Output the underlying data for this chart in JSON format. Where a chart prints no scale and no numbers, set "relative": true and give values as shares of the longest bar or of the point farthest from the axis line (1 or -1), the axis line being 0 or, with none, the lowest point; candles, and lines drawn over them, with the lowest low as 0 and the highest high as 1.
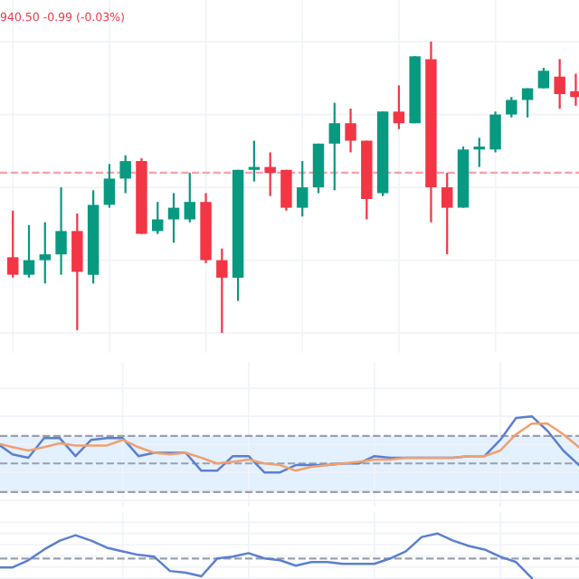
{
  "chart_data": [
    {
      "type": "candlestick",
      "relative": true,
      "categories": [
        null,
        null,
        null,
        null,
        null,
        null,
        null,
        null,
        null,
        null,
        null,
        null,
        null,
        null,
        null,
        null,
        null,
        null,
        null,
        null,
        null,
        null,
        null,
        null,
        null,
        null,
        null,
        null,
        null,
        null,
        null,
        null,
        null,
        null,
        null,
        null
      ],
      "ohlc": [
        [
          0.26,
          0.42,
          0.19,
          0.2
        ],
        [
          0.2,
          0.37,
          0.19,
          0.25
        ],
        [
          0.25,
          0.38,
          0.17,
          0.27
        ],
        [
          0.27,
          0.5,
          0.2,
          0.35
        ],
        [
          0.35,
          0.41,
          0.01,
          0.21
        ],
        [
          0.2,
          0.49,
          0.17,
          0.44
        ],
        [
          0.44,
          0.58,
          0.43,
          0.53
        ],
        [
          0.53,
          0.61,
          0.48,
          0.59
        ],
        [
          0.59,
          0.6,
          0.34,
          0.34
        ],
        [
          0.35,
          0.45,
          0.34,
          0.39
        ],
        [
          0.39,
          0.48,
          0.31,
          0.43
        ],
        [
          0.39,
          0.55,
          0.38,
          0.45
        ],
        [
          0.45,
          0.48,
          0.24,
          0.25
        ],
        [
          0.25,
          0.29,
          0.0,
          0.19
        ],
        [
          0.19,
          0.56,
          0.11,
          0.56
        ],
        [
          0.56,
          0.66,
          0.52,
          0.57
        ],
        [
          0.57,
          0.62,
          0.47,
          0.55
        ],
        [
          0.56,
          0.56,
          0.42,
          0.43
        ],
        [
          0.43,
          0.59,
          0.4,
          0.5
        ],
        [
          0.5,
          0.65,
          0.48,
          0.65
        ],
        [
          0.65,
          0.79,
          0.49,
          0.72
        ],
        [
          0.72,
          0.77,
          0.62,
          0.66
        ],
        [
          0.66,
          0.66,
          0.39,
          0.46
        ],
        [
          0.48,
          0.76,
          0.47,
          0.76
        ],
        [
          0.76,
          0.85,
          0.7,
          0.72
        ],
        [
          0.72,
          0.95,
          0.72,
          0.95
        ],
        [
          0.94,
          1.0,
          0.38,
          0.5
        ],
        [
          0.5,
          0.55,
          0.27,
          0.43
        ],
        [
          0.43,
          0.64,
          0.43,
          0.63
        ],
        [
          0.63,
          0.67,
          0.57,
          0.64
        ],
        [
          0.63,
          0.76,
          0.62,
          0.75
        ],
        [
          0.75,
          0.81,
          0.74,
          0.8
        ],
        [
          0.8,
          0.84,
          0.74,
          0.84
        ],
        [
          0.84,
          0.91,
          0.84,
          0.9
        ],
        [
          0.88,
          0.94,
          0.77,
          0.82
        ],
        [
          0.83,
          0.89,
          0.78,
          0.81
        ]
      ],
      "colors": [
        "#f23645",
        "#089981",
        "#089981",
        "#089981",
        "#f23645",
        "#089981",
        "#089981",
        "#089981",
        "#f23645",
        "#089981",
        "#089981",
        "#089981",
        "#f23645",
        "#f23645",
        "#089981",
        "#089981",
        "#f23645",
        "#f23645",
        "#089981",
        "#089981",
        "#089981",
        "#f23645",
        "#f23645",
        "#089981",
        "#f23645",
        "#089981",
        "#f23645",
        "#f23645",
        "#089981",
        "#089981",
        "#089981",
        "#089981",
        "#089981",
        "#089981",
        "#f23645",
        "#f23645"
      ],
      "ref_lines": [
        {
          "axis": "y",
          "value": 0.55,
          "color": "#f7a1a8",
          "line_style": "dashed"
        }
      ],
      "annotations": [
        "940.50 -0.99 (-0.03%)"
      ],
      "grid": true
    },
    {
      "type": "line",
      "relative": true,
      "categories": [
        null,
        null,
        null,
        null,
        null,
        null,
        null,
        null,
        null,
        null,
        null,
        null,
        null,
        null,
        null,
        null,
        null,
        null,
        null,
        null,
        null,
        null,
        null,
        null,
        null,
        null,
        null,
        null,
        null,
        null,
        null,
        null,
        null,
        null,
        null,
        null,
        null,
        null
      ],
      "series": [
        {
          "color": "#5b7fd0",
          "values": [
            0.52,
            0.32,
            0.26,
            0.61,
            0.61,
            0.29,
            0.58,
            0.61,
            0.61,
            0.29,
            0.35,
            0.35,
            0.35,
            0.03,
            0.03,
            0.29,
            0.29,
            0.0,
            0.0,
            0.13,
            0.13,
            0.13,
            0.16,
            0.16,
            0.29,
            0.26,
            0.26,
            0.26,
            0.26,
            0.26,
            0.29,
            0.29,
            0.58,
            0.97,
            1.0,
            0.74,
            0.39,
            0.13
          ]
        },
        {
          "color": "#f0a070",
          "values": [
            0.52,
            0.45,
            0.39,
            0.45,
            0.52,
            0.48,
            0.48,
            0.48,
            0.58,
            0.45,
            0.35,
            0.32,
            0.35,
            0.26,
            0.16,
            0.19,
            0.23,
            0.16,
            0.13,
            0.03,
            0.1,
            0.13,
            0.16,
            0.19,
            0.23,
            0.23,
            0.26,
            0.26,
            0.26,
            0.26,
            0.29,
            0.29,
            0.39,
            0.68,
            0.87,
            0.87,
            0.68,
            0.45
          ]
        }
      ],
      "bands": [
        {
          "axis": "y",
          "from": -0.35,
          "to": 0.65,
          "color": "#e3f0fd"
        }
      ],
      "ref_lines": [
        {
          "axis": "y",
          "value": 0.65,
          "color": "#9aa0ac",
          "line_style": "dashed"
        },
        {
          "axis": "y",
          "value": 0.16,
          "color": "#9aa0ac",
          "line_style": "dashed"
        },
        {
          "axis": "y",
          "value": -0.35,
          "color": "#9aa0ac",
          "line_style": "dashed"
        }
      ],
      "grid": true,
      "marker": "none",
      "line_style": "solid"
    },
    {
      "type": "line",
      "relative": true,
      "categories": [
        null,
        null,
        null,
        null,
        null,
        null,
        null,
        null,
        null,
        null,
        null,
        null,
        null,
        null,
        null,
        null,
        null,
        null,
        null,
        null,
        null,
        null,
        null,
        null,
        null,
        null,
        null,
        null,
        null,
        null,
        null,
        null,
        null,
        null,
        null,
        null,
        null,
        null
      ],
      "series": [
        {
          "color": "#5b7fd0",
          "values": [
            0.24,
            0.24,
            0.4,
            0.64,
            0.84,
            0.96,
            0.84,
            0.68,
            0.6,
            0.52,
            0.48,
            0.16,
            0.12,
            0.04,
            0.44,
            0.48,
            0.56,
            0.44,
            0.4,
            0.28,
            0.36,
            0.36,
            0.32,
            0.32,
            0.32,
            0.44,
            0.6,
            0.92,
            1.0,
            0.84,
            0.72,
            0.64,
            0.48,
            0.36,
            0.0,
            null,
            null,
            null
          ]
        }
      ],
      "ref_lines": [
        {
          "axis": "y",
          "value": 0.44,
          "color": "#9aa0ac",
          "line_style": "dashed"
        }
      ],
      "grid": true,
      "marker": "none",
      "line_style": "solid"
    }
  ]
}
